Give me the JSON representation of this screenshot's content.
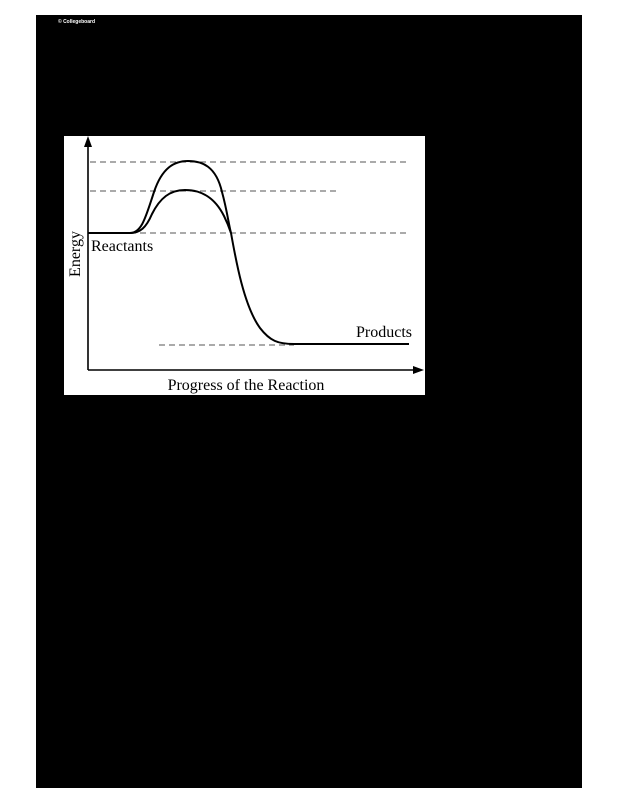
{
  "watermark": "© Collegeboard",
  "diagram": {
    "y_axis_label": "Energy",
    "x_axis_label": "Progress of the Reaction",
    "reactants_label": "Reactants",
    "products_label": "Products"
  }
}
